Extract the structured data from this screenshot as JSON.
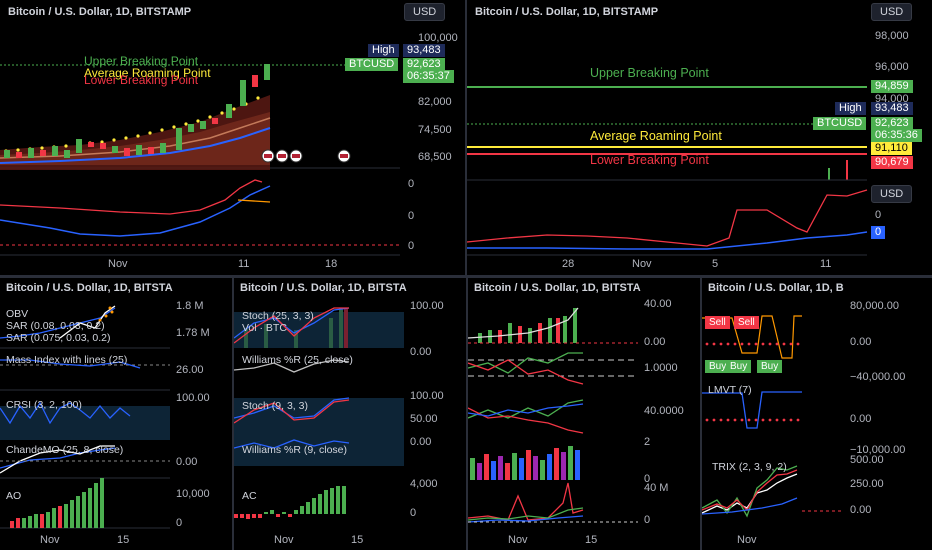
{
  "colors": {
    "bg": "#000000",
    "green": "#4caf50",
    "red": "#f23645",
    "blue": "#2962ff",
    "yellow": "#ffeb3b",
    "grid": "#2a2e39"
  },
  "main": {
    "title": "Bitcoin / U.S. Dollar, 1D, BITSTAMP",
    "currency": "USD",
    "price_axis": [
      "100,000",
      "82,000",
      "74,500",
      "68,500"
    ],
    "lower_axis": [
      "0",
      "0",
      "0"
    ],
    "high_label": "High",
    "high_value": "93,483",
    "symbol": "BTCUSD",
    "price": "92,623",
    "countdown": "06:35:37",
    "upper_label": "Upper Breaking Point",
    "average_label": "Average Roaming Point",
    "lower_label": "Lower Breaking Point",
    "x_labels": [
      "Nov",
      "11",
      "18"
    ]
  },
  "right": {
    "title": "Bitcoin / U.S. Dollar, 1D, BITSTAMP",
    "currency": "USD",
    "currency2": "USD",
    "price_axis": [
      "98,000",
      "96,000",
      "94,000"
    ],
    "upper_value": "94,859",
    "high_label": "High",
    "high_value": "93,483",
    "symbol": "BTCUSD",
    "price": "92,623",
    "countdown": "06:35:36",
    "average_value": "91,110",
    "lower_value": "90,679",
    "upper_label": "Upper Breaking Point",
    "average_label": "Average Roaming Point",
    "lower_label": "Lower Breaking Point",
    "lower_axis": [
      "0"
    ],
    "lower_tag": "0",
    "x_labels": [
      "28",
      "Nov",
      "5",
      "11"
    ]
  },
  "p1": {
    "title": "Bitcoin / U.S. Dollar, 1D, BITSTA",
    "labels": [
      "OBV",
      "SAR (0.08, 0.03, 0.2)",
      "SAR (0.075, 0.03, 0.2)",
      "Mass Index with lines (25)",
      "CRSI (3, 2, 100)",
      "ChandeMO (25, 8, close)",
      "AO"
    ],
    "axis": [
      "1.8 M",
      "1.78 M",
      "26.00",
      "100.00",
      "0.00",
      "10,000",
      "0"
    ],
    "x_labels": [
      "Nov",
      "15"
    ]
  },
  "p2": {
    "title": "Bitcoin / U.S. Dollar, 1D, BITSTA",
    "labels": [
      "Stoch (25, 3, 3)",
      "Vol · BTC",
      "Williams %R (25, close)",
      "Stoch (9, 3, 3)",
      "Williams %R (9, close)",
      "AC"
    ],
    "axis": [
      "100.00",
      "0.00",
      "100.00",
      "50.00",
      "0.00",
      "4,000",
      "0"
    ],
    "x_labels": [
      "Nov",
      "15"
    ]
  },
  "p3": {
    "title": "Bitcoin / U.S. Dollar, 1D, BITSTA",
    "axis": [
      "40.00",
      "0.00",
      "1.0000",
      "40.0000",
      "2",
      "0",
      "40 M",
      "0"
    ],
    "x_labels": [
      "Nov",
      "15"
    ]
  },
  "p4": {
    "title": "Bitcoin / U.S. Dollar, 1D, B",
    "labels": [
      "LMVT (7)",
      "TRIX (2, 3, 9, 2)"
    ],
    "chips": [
      "Sell",
      "Sell",
      "Buy",
      "Buy",
      "Buy"
    ],
    "axis": [
      "80,000.00",
      "0.00",
      "−40,000.00",
      "0.00",
      "−10,000.00",
      "500.00",
      "250.00",
      "0.00"
    ],
    "x_labels": [
      "Nov"
    ]
  }
}
